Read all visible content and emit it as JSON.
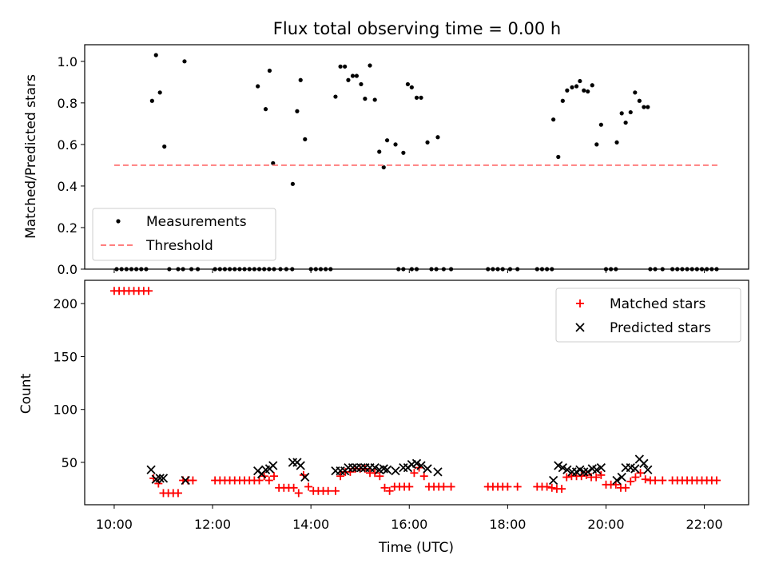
{
  "title": "Flux total observing time = 0.00 h",
  "chart_data": [
    {
      "type": "scatter",
      "panel": "top",
      "ylabel": "Matched/Predicted stars",
      "xlim": [
        9.4,
        22.9
      ],
      "ylim": [
        0.0,
        1.08
      ],
      "yticks": [
        0.0,
        0.2,
        0.4,
        0.6,
        0.8,
        1.0
      ],
      "ytick_labels": [
        "0.0",
        "0.2",
        "0.4",
        "0.6",
        "0.8",
        "1.0"
      ],
      "xtick_values": [
        10,
        12,
        14,
        16,
        18,
        20,
        22
      ],
      "legend": {
        "position": "lower-left",
        "entries": [
          "Measurements",
          "Threshold"
        ]
      },
      "series": [
        {
          "name": "Measurements",
          "color": "#000000",
          "marker": "dot",
          "x": [
            10.77,
            10.85,
            10.93,
            11.02,
            11.43,
            12.92,
            13.08,
            13.16,
            13.23,
            13.63,
            13.72,
            13.79,
            13.88,
            14.5,
            14.6,
            14.69,
            14.76,
            14.85,
            14.93,
            15.02,
            15.1,
            15.2,
            15.3,
            15.39,
            15.48,
            15.55,
            15.72,
            15.88,
            15.97,
            16.05,
            16.15,
            16.24,
            16.37,
            16.58,
            18.93,
            19.03,
            19.12,
            19.21,
            19.31,
            19.4,
            19.47,
            19.55,
            19.63,
            19.72,
            19.81,
            19.9,
            20.22,
            20.32,
            20.4,
            20.5,
            20.59,
            20.68,
            20.77,
            20.85
          ],
          "y": [
            0.81,
            1.03,
            0.85,
            0.59,
            1.0,
            0.88,
            0.77,
            0.955,
            0.51,
            0.41,
            0.76,
            0.91,
            0.625,
            0.83,
            0.975,
            0.975,
            0.91,
            0.93,
            0.93,
            0.89,
            0.82,
            0.98,
            0.815,
            0.565,
            0.49,
            0.62,
            0.6,
            0.56,
            0.89,
            0.875,
            0.825,
            0.825,
            0.61,
            0.635,
            0.72,
            0.54,
            0.81,
            0.86,
            0.875,
            0.88,
            0.905,
            0.86,
            0.855,
            0.885,
            0.6,
            0.695,
            0.61,
            0.75,
            0.705,
            0.755,
            0.85,
            0.81,
            0.78,
            0.78
          ]
        },
        {
          "name": "Measurements (zero)",
          "color": "#000000",
          "marker": "dot",
          "x": [
            10.05,
            10.15,
            10.25,
            10.35,
            10.45,
            10.55,
            10.65,
            11.12,
            11.3,
            11.4,
            11.57,
            11.7,
            12.05,
            12.15,
            12.25,
            12.35,
            12.45,
            12.55,
            12.65,
            12.75,
            12.85,
            12.95,
            13.05,
            13.15,
            13.25,
            13.38,
            13.5,
            13.62,
            14.0,
            14.1,
            14.2,
            14.3,
            14.4,
            15.78,
            15.88,
            16.05,
            16.15,
            16.45,
            16.55,
            16.7,
            16.85,
            17.6,
            17.7,
            17.8,
            17.9,
            18.05,
            18.2,
            18.6,
            18.7,
            18.8,
            18.9,
            20.0,
            20.1,
            20.2,
            20.9,
            21.0,
            21.15,
            21.35,
            21.45,
            21.55,
            21.65,
            21.75,
            21.85,
            21.95,
            22.05,
            22.15,
            22.25
          ],
          "y": [
            0,
            0,
            0,
            0,
            0,
            0,
            0,
            0,
            0,
            0,
            0,
            0,
            0,
            0,
            0,
            0,
            0,
            0,
            0,
            0,
            0,
            0,
            0,
            0,
            0,
            0,
            0,
            0,
            0,
            0,
            0,
            0,
            0,
            0,
            0,
            0,
            0,
            0,
            0,
            0,
            0,
            0,
            0,
            0,
            0,
            0,
            0,
            0,
            0,
            0,
            0,
            0,
            0,
            0,
            0,
            0,
            0,
            0,
            0,
            0,
            0,
            0,
            0,
            0,
            0,
            0,
            0
          ]
        },
        {
          "name": "Threshold",
          "color": "#ff7f7f",
          "line": "dashed",
          "x": [
            10.0,
            22.3
          ],
          "y": [
            0.5,
            0.5
          ]
        }
      ]
    },
    {
      "type": "scatter",
      "panel": "bottom",
      "xlabel": "Time (UTC)",
      "ylabel": "Count",
      "xlim": [
        9.4,
        22.9
      ],
      "ylim": [
        10,
        222
      ],
      "yticks": [
        50,
        100,
        150,
        200
      ],
      "ytick_labels": [
        "50",
        "100",
        "150",
        "200"
      ],
      "xticks": [
        10,
        12,
        14,
        16,
        18,
        20,
        22
      ],
      "xtick_labels": [
        "10:00",
        "12:00",
        "14:00",
        "16:00",
        "18:00",
        "20:00",
        "22:00"
      ],
      "legend": {
        "position": "top-right",
        "entries": [
          "Matched stars",
          "Predicted stars"
        ]
      },
      "series": [
        {
          "name": "Matched stars",
          "color": "#ff0000",
          "marker": "plus",
          "x": [
            10.0,
            10.1,
            10.2,
            10.3,
            10.4,
            10.5,
            10.6,
            10.7,
            10.8,
            10.9,
            11.0,
            11.1,
            11.2,
            11.3,
            11.4,
            11.5,
            11.6,
            12.05,
            12.15,
            12.25,
            12.35,
            12.45,
            12.55,
            12.65,
            12.75,
            12.85,
            12.95,
            13.05,
            13.15,
            13.25,
            13.35,
            13.45,
            13.55,
            13.65,
            13.75,
            13.85,
            13.95,
            14.05,
            14.15,
            14.25,
            14.35,
            14.5,
            14.6,
            14.7,
            14.8,
            14.9,
            15.0,
            15.1,
            15.2,
            15.3,
            15.4,
            15.5,
            15.6,
            15.7,
            15.8,
            15.9,
            16.0,
            16.1,
            16.2,
            16.3,
            16.4,
            16.5,
            16.6,
            16.7,
            16.85,
            17.6,
            17.7,
            17.8,
            17.9,
            18.0,
            18.2,
            18.6,
            18.7,
            18.8,
            18.9,
            19.0,
            19.1,
            19.2,
            19.3,
            19.4,
            19.5,
            19.6,
            19.7,
            19.8,
            19.9,
            20.0,
            20.1,
            20.2,
            20.3,
            20.4,
            20.5,
            20.6,
            20.7,
            20.8,
            20.9,
            21.0,
            21.15,
            21.35,
            21.45,
            21.55,
            21.65,
            21.75,
            21.85,
            21.95,
            22.05,
            22.15,
            22.25
          ],
          "y": [
            212,
            212,
            212,
            212,
            212,
            212,
            212,
            212,
            35,
            30,
            21,
            21,
            21,
            21,
            33,
            33,
            33,
            33,
            33,
            33,
            33,
            33,
            33,
            33,
            33,
            33,
            33,
            37,
            33,
            37,
            26,
            26,
            26,
            26,
            21,
            38,
            27,
            23,
            23,
            23,
            23,
            23,
            37,
            41,
            41,
            44,
            44,
            44,
            40,
            40,
            37,
            26,
            23,
            27,
            27,
            27,
            27,
            40,
            45,
            37,
            27,
            27,
            27,
            27,
            27,
            27,
            27,
            27,
            27,
            27,
            27,
            27,
            27,
            27,
            26,
            25,
            25,
            36,
            37,
            37,
            37,
            38,
            36,
            36,
            38,
            29,
            29,
            29,
            26,
            26,
            32,
            36,
            40,
            34,
            33,
            33,
            33,
            33,
            33,
            33,
            33,
            33,
            33,
            33,
            33,
            33,
            33
          ]
        },
        {
          "name": "Predicted stars",
          "color": "#000000",
          "marker": "x",
          "x": [
            10.75,
            10.85,
            10.93,
            11.0,
            11.45,
            12.92,
            13.0,
            13.08,
            13.16,
            13.23,
            13.63,
            13.72,
            13.79,
            13.88,
            14.5,
            14.6,
            14.69,
            14.76,
            14.85,
            14.93,
            15.02,
            15.1,
            15.2,
            15.3,
            15.39,
            15.48,
            15.55,
            15.72,
            15.88,
            15.97,
            16.05,
            16.15,
            16.24,
            16.37,
            16.58,
            18.93,
            19.03,
            19.12,
            19.21,
            19.31,
            19.4,
            19.47,
            19.55,
            19.63,
            19.72,
            19.81,
            19.9,
            20.22,
            20.32,
            20.4,
            20.5,
            20.59,
            20.68,
            20.77,
            20.85
          ],
          "y": [
            43,
            34,
            35,
            35,
            33,
            42,
            39,
            43,
            44,
            47,
            50,
            50,
            47,
            36,
            42,
            42,
            42,
            45,
            45,
            45,
            45,
            45,
            45,
            45,
            43,
            44,
            43,
            42,
            45,
            45,
            48,
            49,
            47,
            44,
            41,
            33,
            47,
            45,
            43,
            41,
            41,
            43,
            41,
            41,
            44,
            43,
            45,
            33,
            36,
            45,
            45,
            44,
            53,
            49,
            43
          ]
        }
      ]
    }
  ]
}
